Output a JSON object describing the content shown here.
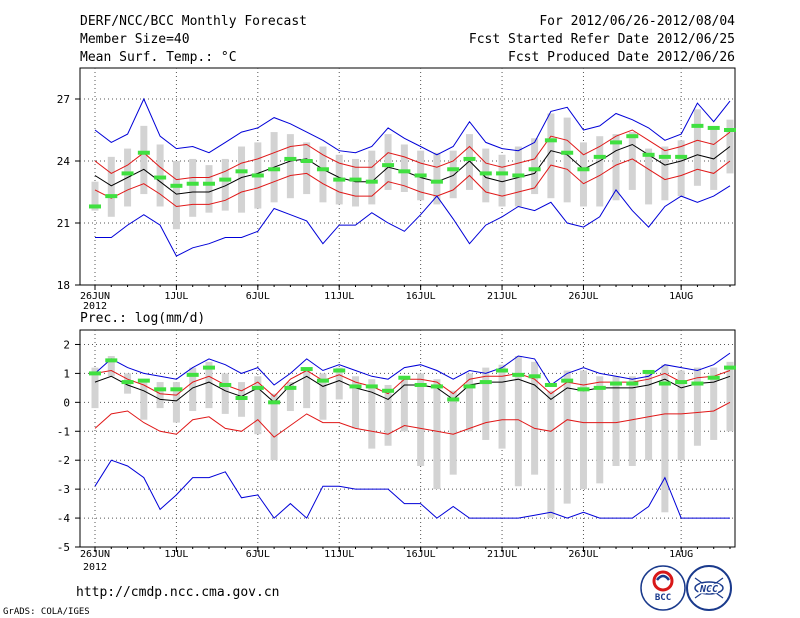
{
  "header": {
    "left": [
      "DERF/NCC/BCC Monthly Forecast",
      "Member Size=40",
      "Mean Surf. Temp.: °C"
    ],
    "right": [
      "For 2012/06/26-2012/08/04",
      "Fcst Started Refer Date 2012/06/25",
      "Fcst Produced Date 2012/06/26"
    ]
  },
  "footer": {
    "url": "http://cmdp.ncc.cma.gov.cn",
    "grads": "GrADS: COLA/IGES",
    "logo_bcc": "BCC",
    "logo_ncc": "NCC"
  },
  "colors": {
    "black": "#000000",
    "red": "#e01818",
    "blue": "#0000d8",
    "green": "#40e040",
    "box": "#d3d3d3",
    "grid": "#555555"
  },
  "chart_data": [
    {
      "type": "line",
      "title": "Mean Surf. Temp.: °C",
      "x_tick_labels": [
        "26JUN",
        "1JUL",
        "6JUL",
        "11JUL",
        "16JUL",
        "21JUL",
        "26JUL",
        "1AUG"
      ],
      "x_tick_days": [
        1,
        6,
        11,
        16,
        21,
        26,
        31,
        37
      ],
      "x_year_label": "2012",
      "ylim": [
        18,
        28.5
      ],
      "y_ticks": [
        18,
        21,
        24,
        27
      ],
      "days": 40,
      "series": [
        {
          "name": "ensemble mean",
          "color": "black",
          "values": [
            23.3,
            22.8,
            23.2,
            23.6,
            23.0,
            22.4,
            22.5,
            22.5,
            22.8,
            23.2,
            23.4,
            23.7,
            24.0,
            24.1,
            23.6,
            23.2,
            23.0,
            23.0,
            23.7,
            23.5,
            23.2,
            23.0,
            23.3,
            24.0,
            23.2,
            23.0,
            23.2,
            23.4,
            24.5,
            24.3,
            23.6,
            24.0,
            24.5,
            24.8,
            24.3,
            23.8,
            24.0,
            24.3,
            24.1,
            24.7
          ]
        },
        {
          "name": "upper red",
          "color": "red",
          "values": [
            24.0,
            23.4,
            23.8,
            24.4,
            23.7,
            23.1,
            23.2,
            23.2,
            23.5,
            23.9,
            24.1,
            24.4,
            24.7,
            24.8,
            24.3,
            23.9,
            23.7,
            23.7,
            24.4,
            24.2,
            23.9,
            23.7,
            24.0,
            24.7,
            23.9,
            23.7,
            23.9,
            24.1,
            25.2,
            25.0,
            24.3,
            24.7,
            25.2,
            25.5,
            25.0,
            24.5,
            24.7,
            25.0,
            24.8,
            25.4
          ]
        },
        {
          "name": "lower red",
          "color": "red",
          "values": [
            22.6,
            22.2,
            22.6,
            22.9,
            22.4,
            21.8,
            21.9,
            21.9,
            22.1,
            22.5,
            22.7,
            23.0,
            23.3,
            23.4,
            22.9,
            22.5,
            22.3,
            22.3,
            23.0,
            22.8,
            22.5,
            22.3,
            22.6,
            23.3,
            22.5,
            22.3,
            22.5,
            22.7,
            23.8,
            23.6,
            22.9,
            23.3,
            23.8,
            24.1,
            23.6,
            23.1,
            23.3,
            23.6,
            23.4,
            24.0
          ]
        },
        {
          "name": "upper blue",
          "color": "blue",
          "values": [
            25.5,
            24.9,
            25.3,
            27.0,
            25.2,
            24.6,
            24.7,
            24.4,
            24.9,
            25.4,
            25.6,
            26.1,
            25.8,
            25.4,
            25.0,
            24.5,
            24.4,
            24.7,
            25.6,
            25.1,
            24.7,
            24.3,
            24.7,
            25.9,
            24.9,
            24.6,
            24.5,
            24.9,
            26.4,
            26.6,
            25.5,
            25.7,
            26.3,
            26.0,
            25.6,
            25.0,
            25.3,
            26.8,
            25.9,
            26.9
          ]
        },
        {
          "name": "lower blue",
          "color": "blue",
          "values": [
            20.3,
            20.3,
            20.9,
            21.4,
            20.9,
            19.4,
            19.8,
            20.0,
            20.3,
            20.3,
            20.6,
            21.7,
            21.4,
            21.1,
            20.0,
            20.9,
            20.9,
            21.5,
            21.0,
            20.6,
            21.4,
            22.3,
            21.2,
            20.0,
            20.9,
            21.3,
            21.8,
            21.6,
            22.0,
            21.0,
            20.8,
            21.3,
            22.6,
            21.6,
            20.8,
            21.8,
            22.3,
            22.0,
            22.3,
            22.8
          ]
        }
      ],
      "ensemble_boxes": {
        "color": "box",
        "low": [
          21.6,
          21.3,
          21.8,
          22.4,
          21.8,
          20.7,
          21.3,
          21.5,
          21.6,
          21.5,
          21.7,
          22.0,
          22.2,
          22.4,
          22.0,
          21.9,
          21.8,
          21.9,
          22.6,
          22.5,
          22.1,
          21.9,
          22.2,
          22.6,
          22.0,
          21.8,
          21.8,
          22.4,
          22.2,
          22.0,
          21.8,
          21.8,
          22.1,
          22.6,
          21.9,
          22.1,
          22.3,
          22.8,
          22.6,
          23.4
        ],
        "high": [
          23.0,
          24.2,
          24.6,
          25.7,
          24.8,
          24.0,
          24.1,
          23.8,
          24.1,
          24.7,
          24.9,
          25.4,
          25.3,
          24.9,
          24.7,
          24.3,
          24.1,
          24.5,
          25.3,
          24.8,
          24.5,
          24.4,
          24.5,
          25.3,
          24.6,
          24.3,
          24.7,
          25.1,
          26.3,
          26.1,
          24.9,
          25.2,
          25.3,
          25.4,
          24.6,
          24.7,
          25.0,
          26.5,
          25.6,
          26.0
        ],
        "median": [
          21.8,
          22.3,
          23.4,
          24.4,
          23.2,
          22.8,
          22.9,
          22.9,
          23.1,
          23.5,
          23.3,
          23.6,
          24.1,
          24.0,
          23.6,
          23.1,
          23.1,
          23.0,
          23.8,
          23.5,
          23.3,
          23.0,
          23.6,
          24.1,
          23.4,
          23.4,
          23.3,
          23.6,
          25.0,
          24.4,
          23.6,
          24.2,
          24.9,
          25.2,
          24.3,
          24.2,
          24.2,
          25.7,
          25.6,
          25.5
        ]
      }
    },
    {
      "type": "line",
      "title": "Prec.: log(mm/d)",
      "x_tick_labels": [
        "26JUN",
        "1JUL",
        "6JUL",
        "11JUL",
        "16JUL",
        "21JUL",
        "26JUL",
        "1AUG"
      ],
      "x_tick_days": [
        1,
        6,
        11,
        16,
        21,
        26,
        31,
        37
      ],
      "x_year_label": "2012",
      "ylim": [
        -5,
        2.5
      ],
      "y_ticks": [
        -5,
        -4,
        -3,
        -2,
        -1,
        0,
        1,
        2
      ],
      "days": 40,
      "series": [
        {
          "name": "ensemble mean",
          "color": "black",
          "values": [
            0.7,
            0.9,
            0.6,
            0.4,
            0.1,
            0.05,
            0.5,
            0.7,
            0.4,
            0.2,
            0.5,
            0.0,
            0.6,
            0.9,
            0.55,
            0.75,
            0.5,
            0.35,
            0.1,
            0.6,
            0.6,
            0.5,
            0.1,
            0.6,
            0.7,
            0.7,
            0.8,
            0.6,
            0.1,
            0.5,
            0.4,
            0.5,
            0.5,
            0.5,
            0.6,
            0.8,
            0.5,
            0.65,
            0.7,
            0.9
          ]
        },
        {
          "name": "upper red",
          "color": "red",
          "values": [
            1.0,
            1.1,
            0.8,
            0.6,
            0.3,
            0.25,
            0.7,
            0.9,
            0.6,
            0.4,
            0.7,
            0.2,
            0.8,
            1.1,
            0.75,
            0.95,
            0.7,
            0.55,
            0.3,
            0.8,
            0.8,
            0.7,
            0.3,
            0.8,
            0.9,
            0.9,
            1.0,
            0.8,
            0.3,
            0.7,
            0.6,
            0.7,
            0.7,
            0.7,
            0.8,
            1.0,
            0.7,
            0.85,
            0.9,
            1.1
          ]
        },
        {
          "name": "lower red",
          "color": "red",
          "values": [
            -0.9,
            -0.4,
            -0.3,
            -0.7,
            -1.0,
            -1.1,
            -0.6,
            -0.5,
            -0.9,
            -1.0,
            -0.6,
            -1.2,
            -0.8,
            -0.4,
            -0.7,
            -0.7,
            -0.9,
            -1.0,
            -1.1,
            -0.8,
            -0.9,
            -1.0,
            -1.1,
            -0.9,
            -0.7,
            -0.6,
            -0.6,
            -0.9,
            -1.0,
            -0.6,
            -0.7,
            -0.7,
            -0.7,
            -0.6,
            -0.5,
            -0.4,
            -0.4,
            -0.35,
            -0.3,
            0.0
          ]
        },
        {
          "name": "upper blue",
          "color": "blue",
          "values": [
            1.0,
            1.5,
            1.2,
            1.0,
            0.9,
            0.8,
            1.2,
            1.5,
            1.3,
            1.0,
            1.2,
            0.6,
            1.0,
            1.5,
            1.1,
            1.3,
            1.1,
            0.9,
            0.8,
            1.2,
            1.3,
            1.1,
            0.8,
            1.1,
            1.0,
            1.2,
            1.6,
            1.5,
            0.6,
            1.0,
            1.2,
            1.0,
            0.9,
            0.8,
            0.9,
            1.3,
            1.2,
            1.1,
            1.3,
            1.7
          ]
        },
        {
          "name": "lower blue",
          "color": "blue",
          "values": [
            -2.9,
            -2.0,
            -2.2,
            -2.6,
            -3.7,
            -3.2,
            -2.6,
            -2.6,
            -2.4,
            -3.3,
            -3.2,
            -4.0,
            -3.5,
            -4.0,
            -2.9,
            -2.9,
            -3.0,
            -3.0,
            -3.0,
            -3.5,
            -3.5,
            -4.0,
            -3.6,
            -4.0,
            -4.0,
            -4.0,
            -4.0,
            -3.9,
            -3.8,
            -4.0,
            -3.8,
            -4.0,
            -4.0,
            -4.0,
            -3.6,
            -2.6,
            -4.0,
            -4.0,
            -4.0,
            -4.0
          ]
        }
      ],
      "ensemble_boxes": {
        "color": "box",
        "low": [
          -0.2,
          0.9,
          0.3,
          -0.6,
          -0.2,
          -0.7,
          -0.3,
          -0.2,
          -0.4,
          -0.5,
          -1.1,
          -2.0,
          -0.3,
          -0.2,
          -0.6,
          0.1,
          -0.9,
          -1.6,
          -1.5,
          -1.0,
          -2.2,
          -3.0,
          -2.5,
          -1.0,
          -1.3,
          -1.6,
          -2.9,
          -2.5,
          -4.0,
          -3.5,
          -3.0,
          -2.8,
          -2.2,
          -2.2,
          -2.0,
          -3.8,
          -2.0,
          -1.5,
          -1.3,
          -1.0
        ],
        "high": [
          1.2,
          1.6,
          1.0,
          0.8,
          0.7,
          0.7,
          1.2,
          1.4,
          1.0,
          0.7,
          0.9,
          0.3,
          0.7,
          1.2,
          1.0,
          1.2,
          0.9,
          0.8,
          0.6,
          0.9,
          1.0,
          0.8,
          0.4,
          1.0,
          1.2,
          1.3,
          1.6,
          1.4,
          0.4,
          1.1,
          1.1,
          0.9,
          0.9,
          0.9,
          1.0,
          1.3,
          1.1,
          1.2,
          1.2,
          1.4
        ],
        "median": [
          1.0,
          1.45,
          0.7,
          0.75,
          0.45,
          0.45,
          0.95,
          1.2,
          0.6,
          0.15,
          0.5,
          0.0,
          0.5,
          1.15,
          0.75,
          1.1,
          0.55,
          0.55,
          0.4,
          0.85,
          0.6,
          0.55,
          0.1,
          0.55,
          0.7,
          1.1,
          0.95,
          0.9,
          0.6,
          0.75,
          0.45,
          0.5,
          0.65,
          0.65,
          1.05,
          0.65,
          0.7,
          0.65,
          0.85,
          1.2
        ]
      }
    }
  ]
}
